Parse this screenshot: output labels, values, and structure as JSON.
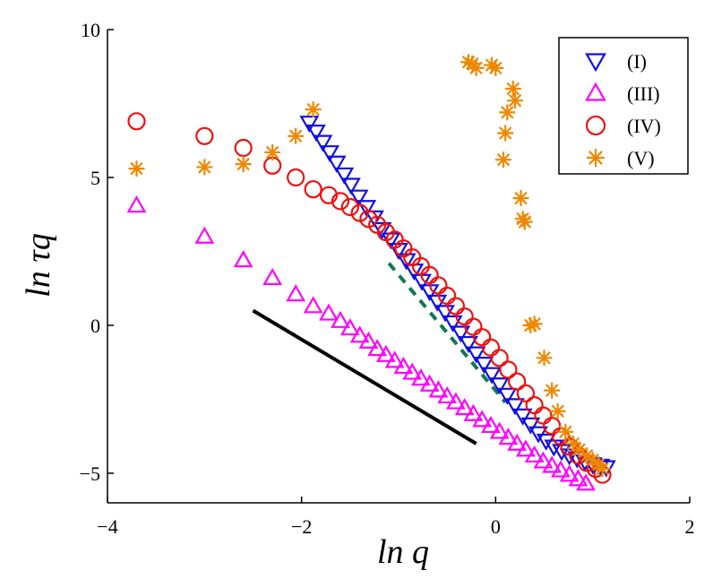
{
  "chart_data": {
    "type": "scatter",
    "xlabel": "ln q",
    "ylabel": "ln τq",
    "xlim": [
      -4,
      2
    ],
    "ylim": [
      -6,
      10
    ],
    "xticks": [
      -4,
      -2,
      0,
      2
    ],
    "yticks": [
      -5,
      0,
      5,
      10
    ],
    "grid": false,
    "legend_position": "top-right",
    "series": [
      {
        "name": "(I)",
        "marker": "triangle-down",
        "color": "#1010e0",
        "points": [
          [
            -1.92,
            6.85
          ],
          [
            -1.85,
            6.55
          ],
          [
            -1.78,
            6.2
          ],
          [
            -1.71,
            5.85
          ],
          [
            -1.64,
            5.5
          ],
          [
            -1.56,
            5.1
          ],
          [
            -1.49,
            4.75
          ],
          [
            -1.41,
            4.35
          ],
          [
            -1.33,
            4.0
          ],
          [
            -1.25,
            3.65
          ],
          [
            -1.17,
            3.25
          ],
          [
            -1.08,
            2.9
          ],
          [
            -1.0,
            2.55
          ],
          [
            -0.92,
            2.2
          ],
          [
            -0.84,
            1.85
          ],
          [
            -0.76,
            1.5
          ],
          [
            -0.68,
            1.15
          ],
          [
            -0.6,
            0.8
          ],
          [
            -0.52,
            0.45
          ],
          [
            -0.44,
            0.1
          ],
          [
            -0.36,
            -0.25
          ],
          [
            -0.28,
            -0.6
          ],
          [
            -0.2,
            -0.95
          ],
          [
            -0.12,
            -1.3
          ],
          [
            -0.04,
            -1.65
          ],
          [
            0.04,
            -2.0
          ],
          [
            0.12,
            -2.35
          ],
          [
            0.2,
            -2.7
          ],
          [
            0.28,
            -3.05
          ],
          [
            0.36,
            -3.35
          ],
          [
            0.44,
            -3.65
          ],
          [
            0.52,
            -3.9
          ],
          [
            0.6,
            -4.1
          ],
          [
            0.68,
            -4.25
          ],
          [
            0.76,
            -4.4
          ],
          [
            0.84,
            -4.5
          ],
          [
            0.92,
            -4.6
          ],
          [
            1.0,
            -4.7
          ],
          [
            1.08,
            -4.75
          ],
          [
            1.14,
            -4.8
          ]
        ]
      },
      {
        "name": "(III)",
        "marker": "triangle-up",
        "color": "#ff00ff",
        "points": [
          [
            -3.7,
            4.05
          ],
          [
            -3.0,
            3.0
          ],
          [
            -2.6,
            2.2
          ],
          [
            -2.3,
            1.6
          ],
          [
            -2.06,
            1.05
          ],
          [
            -1.88,
            0.65
          ],
          [
            -1.72,
            0.4
          ],
          [
            -1.6,
            0.15
          ],
          [
            -1.5,
            -0.1
          ],
          [
            -1.4,
            -0.35
          ],
          [
            -1.31,
            -0.55
          ],
          [
            -1.22,
            -0.8
          ],
          [
            -1.13,
            -1.0
          ],
          [
            -1.04,
            -1.2
          ],
          [
            -0.95,
            -1.4
          ],
          [
            -0.86,
            -1.6
          ],
          [
            -0.77,
            -1.8
          ],
          [
            -0.68,
            -2.0
          ],
          [
            -0.59,
            -2.2
          ],
          [
            -0.5,
            -2.4
          ],
          [
            -0.41,
            -2.6
          ],
          [
            -0.32,
            -2.8
          ],
          [
            -0.23,
            -3.0
          ],
          [
            -0.14,
            -3.2
          ],
          [
            -0.05,
            -3.4
          ],
          [
            0.04,
            -3.6
          ],
          [
            0.13,
            -3.8
          ],
          [
            0.22,
            -4.0
          ],
          [
            0.31,
            -4.2
          ],
          [
            0.4,
            -4.4
          ],
          [
            0.49,
            -4.6
          ],
          [
            0.58,
            -4.75
          ],
          [
            0.67,
            -4.9
          ],
          [
            0.76,
            -5.05
          ],
          [
            0.85,
            -5.2
          ],
          [
            0.93,
            -5.35
          ]
        ]
      },
      {
        "name": "(IV)",
        "marker": "circle",
        "color": "#ee1111",
        "points": [
          [
            -3.7,
            6.9
          ],
          [
            -3.0,
            6.4
          ],
          [
            -2.6,
            6.0
          ],
          [
            -2.3,
            5.4
          ],
          [
            -2.06,
            5.0
          ],
          [
            -1.88,
            4.6
          ],
          [
            -1.72,
            4.4
          ],
          [
            -1.6,
            4.2
          ],
          [
            -1.5,
            4.0
          ],
          [
            -1.4,
            3.8
          ],
          [
            -1.31,
            3.6
          ],
          [
            -1.22,
            3.4
          ],
          [
            -1.13,
            3.15
          ],
          [
            -1.04,
            2.9
          ],
          [
            -0.95,
            2.6
          ],
          [
            -0.86,
            2.3
          ],
          [
            -0.77,
            2.0
          ],
          [
            -0.68,
            1.7
          ],
          [
            -0.59,
            1.35
          ],
          [
            -0.5,
            1.0
          ],
          [
            -0.41,
            0.65
          ],
          [
            -0.32,
            0.3
          ],
          [
            -0.23,
            -0.05
          ],
          [
            -0.14,
            -0.4
          ],
          [
            -0.05,
            -0.75
          ],
          [
            0.04,
            -1.1
          ],
          [
            0.13,
            -1.5
          ],
          [
            0.22,
            -1.9
          ],
          [
            0.31,
            -2.3
          ],
          [
            0.4,
            -2.7
          ],
          [
            0.49,
            -3.05
          ],
          [
            0.58,
            -3.4
          ],
          [
            0.67,
            -3.75
          ],
          [
            0.76,
            -4.1
          ],
          [
            0.85,
            -4.4
          ],
          [
            0.94,
            -4.65
          ],
          [
            1.03,
            -4.85
          ],
          [
            1.1,
            -5.05
          ]
        ]
      },
      {
        "name": "(V)",
        "marker": "star",
        "color": "#ee8800",
        "points": [
          [
            -3.7,
            5.3
          ],
          [
            -3.0,
            5.35
          ],
          [
            -2.6,
            5.45
          ],
          [
            -2.3,
            5.85
          ],
          [
            -2.06,
            6.4
          ],
          [
            -1.88,
            7.3
          ],
          [
            -0.28,
            8.9
          ],
          [
            -0.24,
            8.85
          ],
          [
            -0.2,
            8.7
          ],
          [
            -0.04,
            8.8
          ],
          [
            0.0,
            8.7
          ],
          [
            0.1,
            6.5
          ],
          [
            0.12,
            7.2
          ],
          [
            0.18,
            8.0
          ],
          [
            0.2,
            7.6
          ],
          [
            0.08,
            5.6
          ],
          [
            0.26,
            4.3
          ],
          [
            0.28,
            3.6
          ],
          [
            0.3,
            3.5
          ],
          [
            0.36,
            0.0
          ],
          [
            0.4,
            0.05
          ],
          [
            0.5,
            -1.1
          ],
          [
            0.58,
            -2.2
          ],
          [
            0.64,
            -2.9
          ],
          [
            0.72,
            -3.6
          ],
          [
            0.8,
            -4.0
          ],
          [
            0.86,
            -4.2
          ],
          [
            0.94,
            -4.4
          ],
          [
            1.0,
            -4.55
          ],
          [
            1.06,
            -4.7
          ],
          [
            1.1,
            -4.85
          ]
        ]
      }
    ],
    "reference_lines": [
      {
        "style": "solid",
        "color": "#000000",
        "points": [
          [
            -2.5,
            0.5
          ],
          [
            -0.2,
            -4.0
          ]
        ]
      },
      {
        "style": "dashed",
        "color": "#117755",
        "points": [
          [
            -1.1,
            2.1
          ],
          [
            0.1,
            -2.6
          ]
        ]
      }
    ]
  }
}
